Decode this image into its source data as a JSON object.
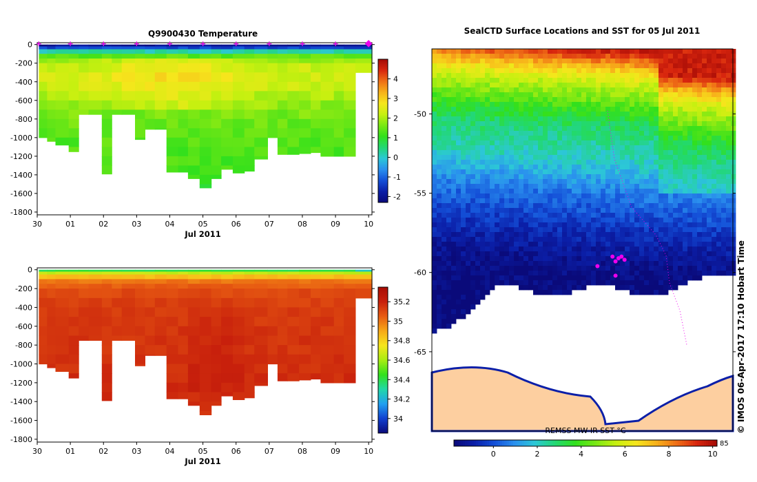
{
  "colors": {
    "temp_scale": [
      "#0a0a7a",
      "#0b1fa8",
      "#1450d8",
      "#2a90ee",
      "#2cc8d6",
      "#22d872",
      "#32e01c",
      "#7ae814",
      "#c7f010",
      "#f6e61c",
      "#f7b11a",
      "#ef6f16",
      "#d8260e",
      "#a40a06"
    ],
    "sal_scale": [
      "#0a0a7a",
      "#1040d0",
      "#20a0f0",
      "#22d8a8",
      "#32e01c",
      "#a8ec12",
      "#f6e61c",
      "#f7a818",
      "#e85c12",
      "#c8200c",
      "#a80d05"
    ],
    "land": "#fdcfa0",
    "ice": "#ffffff",
    "track": "#ee00ee"
  },
  "chart_data": [
    {
      "type": "heatmap",
      "title": "Q9900430  Temperature",
      "xlabel": "Jul 2011",
      "ylabel": "",
      "x_ticks": [
        "30",
        "01",
        "02",
        "03",
        "04",
        "05",
        "06",
        "07",
        "08",
        "09",
        "10"
      ],
      "x_tick_values": [
        0,
        1,
        2,
        3,
        4,
        5,
        6,
        7,
        8,
        9,
        10
      ],
      "xlim": [
        0,
        10.1
      ],
      "y_ticks": [
        "0",
        "-200",
        "-400",
        "-600",
        "-800",
        "-1000",
        "-1200",
        "-1400",
        "-1600",
        "-1800"
      ],
      "y_tick_values": [
        0,
        -200,
        -400,
        -600,
        -800,
        -1000,
        -1200,
        -1400,
        -1600,
        -1800
      ],
      "ylim": [
        -1830,
        20
      ],
      "colorbar_ticks": [
        "4",
        "3",
        "2",
        "1",
        "0",
        "-1",
        "-2"
      ],
      "colorbar_tick_values": [
        4,
        3,
        2,
        1,
        0,
        -1,
        -2
      ],
      "colorbar_range": [
        -2.3,
        5
      ],
      "profile_times": [
        0.05,
        0.3,
        0.55,
        0.95,
        1.25,
        1.55,
        1.95,
        2.25,
        2.55,
        2.95,
        3.25,
        3.55,
        3.9,
        4.25,
        4.55,
        4.9,
        5.25,
        5.55,
        5.9,
        6.25,
        6.55,
        6.95,
        7.25,
        7.55,
        7.9,
        8.25,
        8.55,
        8.95,
        9.25,
        9.6
      ],
      "profile_max_depths": [
        -1000,
        -1040,
        -1080,
        -1150,
        -750,
        -750,
        -1390,
        -750,
        -750,
        -1020,
        -910,
        -910,
        -1370,
        -1370,
        -1440,
        -1540,
        -1440,
        -1340,
        -1380,
        -1360,
        -1230,
        -1000,
        -1180,
        -1180,
        -1170,
        -1160,
        -1200,
        -1200,
        -1200,
        -300
      ],
      "depth_levels": [
        0,
        -20,
        -50,
        -100,
        -150,
        -200,
        -300,
        -400,
        -500,
        -600,
        -700,
        -800,
        -900,
        -1000,
        -1100,
        -1200,
        -1300,
        -1400,
        -1500,
        -1600
      ],
      "layer_values": [
        -2.0,
        -1.3,
        0.2,
        1.4,
        1.9,
        2.2,
        2.3,
        2.2,
        2.0,
        1.8,
        1.6,
        1.5,
        1.4,
        1.35,
        1.3,
        1.25,
        1.2,
        1.15,
        1.1,
        1.05
      ],
      "profile_markers": [
        0.05,
        1.0,
        2.0,
        3.0,
        4.0,
        5.0,
        6.0,
        7.0,
        8.0,
        9.0,
        10.0
      ],
      "marker_symbol": "+"
    },
    {
      "type": "heatmap",
      "title": "",
      "xlabel": "Jul 2011",
      "ylabel": "",
      "x_ticks": [
        "30",
        "01",
        "02",
        "03",
        "04",
        "05",
        "06",
        "07",
        "08",
        "09",
        "10"
      ],
      "x_tick_values": [
        0,
        1,
        2,
        3,
        4,
        5,
        6,
        7,
        8,
        9,
        10
      ],
      "xlim": [
        0,
        10.1
      ],
      "y_ticks": [
        "0",
        "-200",
        "-400",
        "-600",
        "-800",
        "-1000",
        "-1200",
        "-1400",
        "-1600",
        "-1800"
      ],
      "y_tick_values": [
        0,
        -200,
        -400,
        -600,
        -800,
        -1000,
        -1200,
        -1400,
        -1600,
        -1800
      ],
      "ylim": [
        -1830,
        20
      ],
      "colorbar_ticks": [
        "35.2",
        "35",
        "34.8",
        "34.6",
        "34.4",
        "34.2",
        "34"
      ],
      "colorbar_tick_values": [
        35.2,
        35.0,
        34.8,
        34.6,
        34.4,
        34.2,
        34.0
      ],
      "colorbar_range": [
        33.85,
        35.35
      ],
      "depth_levels": [
        0,
        -20,
        -50,
        -100,
        -150,
        -200,
        -300,
        -400,
        -500,
        -600,
        -700,
        -800,
        -900,
        -1000,
        -1100,
        -1200,
        -1300,
        -1400,
        -1500,
        -1600
      ],
      "layer_values": [
        34.4,
        34.65,
        34.85,
        35.0,
        35.05,
        35.1,
        35.12,
        35.13,
        35.14,
        35.15,
        35.15,
        35.15,
        35.16,
        35.16,
        35.17,
        35.17,
        35.17,
        35.17,
        35.17,
        35.17
      ]
    },
    {
      "type": "heatmap",
      "title": "SealCTD Surface Locations and SST for 05 Jul 2011",
      "xlabel": "",
      "ylabel": "",
      "y_ticks": [
        "-50",
        "-55",
        "-60",
        "-65"
      ],
      "y_tick_values": [
        -50,
        -55,
        -60,
        -65
      ],
      "lat_range": [
        -70.0,
        -45.9
      ],
      "colorbar_label": "REMSS MW-IR SST °C",
      "colorbar_ticks": [
        "0",
        "2",
        "4",
        "6",
        "8",
        "10"
      ],
      "colorbar_tick_values": [
        0,
        2,
        4,
        6,
        8,
        10
      ],
      "colorbar_partial_tick": "85",
      "colorbar_range": [
        -1.8,
        10.2
      ],
      "sst_by_latitude": [
        [
          -46,
          9.5
        ],
        [
          -47,
          7.2
        ],
        [
          -48,
          5.6
        ],
        [
          -49,
          4.6
        ],
        [
          -50,
          3.5
        ],
        [
          -51,
          2.8
        ],
        [
          -52,
          2.4
        ],
        [
          -53,
          2.0
        ],
        [
          -54,
          1.3
        ],
        [
          -55,
          0.6
        ],
        [
          -56,
          0.1
        ],
        [
          -57,
          -0.4
        ],
        [
          -58,
          -0.9
        ],
        [
          -59,
          -1.3
        ],
        [
          -60,
          -1.6
        ],
        [
          -62,
          -1.8
        ]
      ],
      "ice_edge_lat": -61.3,
      "seal_positions": [
        [
          0.61,
          -60.2
        ],
        [
          0.6,
          -59.0
        ],
        [
          0.62,
          -59.1
        ],
        [
          0.63,
          -59.0
        ],
        [
          0.61,
          -59.3
        ],
        [
          0.64,
          -59.2
        ],
        [
          0.55,
          -59.6
        ]
      ],
      "side_note": "© IMOS 06-Apr-2017 17:10 Hobart Time"
    }
  ]
}
